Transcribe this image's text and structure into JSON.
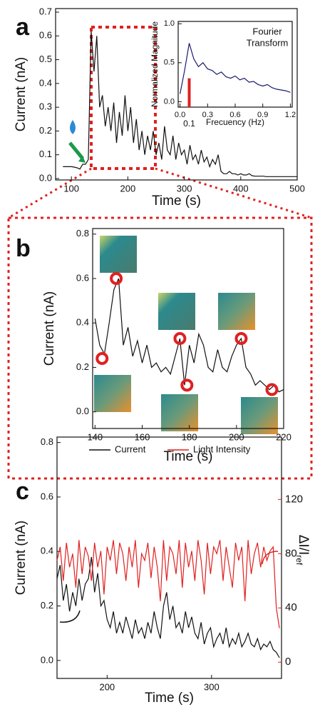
{
  "chart_data": [
    {
      "type": "line",
      "panel": "a",
      "xlabel": "Time (s)",
      "ylabel": "Current (nA)",
      "xlim": [
        72,
        500
      ],
      "xticks": [
        100,
        200,
        300,
        400,
        500
      ],
      "ylim": [
        -0.006,
        0.715
      ],
      "yticks": [
        {
          "value": 0,
          "label": "0.0"
        },
        0.1,
        0.2,
        0.3,
        0.4,
        0.5,
        0.6,
        0.7
      ],
      "color": "#111111",
      "x": [
        85,
        90,
        95,
        100,
        105,
        110,
        115,
        120,
        125,
        130,
        135,
        140,
        145,
        150,
        155,
        160,
        165,
        170,
        175,
        180,
        185,
        190,
        195,
        200,
        205,
        210,
        215,
        220,
        225,
        230,
        235,
        240,
        245,
        250,
        255,
        260,
        265,
        270,
        275,
        280,
        285,
        290,
        295,
        300,
        305,
        310,
        315,
        320,
        325,
        330,
        335,
        340,
        345,
        350,
        355,
        360,
        365,
        370,
        375,
        380,
        385,
        390,
        395,
        400,
        405,
        410,
        415,
        420,
        425,
        430,
        435,
        440,
        445,
        450,
        455,
        460,
        465,
        470,
        475,
        480,
        485,
        490,
        495,
        500
      ],
      "values": [
        0.05,
        0.05,
        0.05,
        0.05,
        0.048,
        0.045,
        0.04,
        0.06,
        0.06,
        0.08,
        0.62,
        0.45,
        0.6,
        0.3,
        0.35,
        0.22,
        0.3,
        0.2,
        0.32,
        0.15,
        0.28,
        0.18,
        0.35,
        0.2,
        0.3,
        0.15,
        0.25,
        0.12,
        0.2,
        0.1,
        0.18,
        0.12,
        0.2,
        0.1,
        0.15,
        0.08,
        0.22,
        0.12,
        0.1,
        0.18,
        0.08,
        0.15,
        0.1,
        0.12,
        0.06,
        0.14,
        0.08,
        0.1,
        0.06,
        0.12,
        0.07,
        0.09,
        0.05,
        0.08,
        0.06,
        0.1,
        0.03,
        0.02,
        0.02,
        0.03,
        0.02,
        0.02,
        0.015,
        0.02,
        0.015,
        0.015,
        0.02,
        0.012,
        0.01,
        0.01,
        0.01,
        0.01,
        0.008,
        0.008,
        0.008,
        0.008,
        0.008,
        0.008,
        0.008,
        0.008,
        0.008,
        0.008,
        0.008,
        0.008
      ]
    },
    {
      "type": "line",
      "title": [
        "Fourier",
        "Transform"
      ],
      "xlabel": "Frecuency (Hz)",
      "ylabel": "Normalized Magnitude",
      "xlim": [
        -0.02,
        1.22
      ],
      "xticks": [
        {
          "value": 0,
          "label": "0.0"
        },
        0.3,
        0.6,
        0.9,
        1.2
      ],
      "ylim": [
        -0.07,
        1.03
      ],
      "yticks": [
        {
          "value": 0,
          "label": "0.0"
        },
        0.5,
        {
          "value": 1,
          "label": "1.0"
        }
      ],
      "color": "#1a1a6e",
      "annotation": {
        "value": 0.1,
        "label": "0.1",
        "color": "#e02020"
      },
      "x": [
        0,
        0.05,
        0.1,
        0.15,
        0.2,
        0.25,
        0.3,
        0.35,
        0.4,
        0.45,
        0.5,
        0.55,
        0.6,
        0.65,
        0.7,
        0.75,
        0.8,
        0.85,
        0.9,
        0.95,
        1.0,
        1.05,
        1.1,
        1.15,
        1.2
      ],
      "values": [
        0.1,
        0.4,
        0.75,
        0.55,
        0.45,
        0.5,
        0.42,
        0.4,
        0.35,
        0.38,
        0.32,
        0.3,
        0.33,
        0.28,
        0.3,
        0.25,
        0.26,
        0.22,
        0.2,
        0.22,
        0.18,
        0.16,
        0.15,
        0.14,
        0.12
      ]
    },
    {
      "type": "line",
      "panel": "b",
      "xlabel": "Time (s)",
      "ylabel": "Current (nA)",
      "xlim": [
        139,
        220
      ],
      "xticks": [
        140,
        160,
        180,
        200,
        220
      ],
      "ylim": [
        -0.075,
        0.825
      ],
      "yticks": [
        {
          "value": 0,
          "label": "0.0"
        },
        0.2,
        0.4,
        0.6,
        0.8
      ],
      "color": "#111111",
      "x": [
        140,
        142,
        144,
        146,
        148,
        150,
        152,
        154,
        156,
        158,
        160,
        162,
        164,
        166,
        168,
        170,
        172,
        174,
        176,
        178,
        180,
        182,
        184,
        186,
        188,
        190,
        192,
        194,
        196,
        198,
        200,
        202,
        204,
        206,
        208,
        210,
        212,
        214,
        216,
        218,
        220
      ],
      "values": [
        0.42,
        0.3,
        0.26,
        0.4,
        0.55,
        0.6,
        0.3,
        0.38,
        0.25,
        0.32,
        0.22,
        0.3,
        0.2,
        0.22,
        0.18,
        0.2,
        0.17,
        0.25,
        0.33,
        0.12,
        0.3,
        0.22,
        0.35,
        0.3,
        0.2,
        0.18,
        0.28,
        0.2,
        0.18,
        0.25,
        0.3,
        0.33,
        0.2,
        0.17,
        0.12,
        0.14,
        0.12,
        0.1,
        0.12,
        0.09,
        0.1
      ],
      "markers": {
        "color": "#e02020",
        "x": [
          143,
          149,
          176,
          179,
          202,
          215
        ],
        "values": [
          0.24,
          0.6,
          0.33,
          0.12,
          0.33,
          0.1
        ]
      }
    },
    {
      "type": "line",
      "panel": "c",
      "xlabel": "Time (s)",
      "ylabel": "Current (nA)",
      "y2label": {
        "text": "ΔI/I",
        "sub": "ref"
      },
      "y2color": "#e02020",
      "xlim": [
        152,
        367
      ],
      "xticks": [
        200,
        300
      ],
      "ylim": [
        -0.066,
        0.82
      ],
      "yticks": [
        {
          "value": 0,
          "label": "0.0"
        },
        0.2,
        0.4,
        0.6,
        0.8
      ],
      "y2lim": [
        -12,
        166
      ],
      "y2ticks": [
        0,
        40,
        80,
        120
      ],
      "x": [
        152,
        155,
        158,
        161,
        164,
        167,
        170,
        173,
        176,
        179,
        182,
        185,
        188,
        191,
        194,
        197,
        200,
        203,
        206,
        209,
        212,
        215,
        218,
        221,
        224,
        227,
        230,
        233,
        236,
        239,
        242,
        245,
        248,
        251,
        254,
        257,
        260,
        263,
        266,
        269,
        272,
        275,
        278,
        281,
        284,
        287,
        290,
        293,
        296,
        299,
        302,
        305,
        308,
        311,
        314,
        317,
        320,
        323,
        326,
        329,
        332,
        335,
        338,
        341,
        344,
        347,
        350,
        353,
        356,
        359,
        362,
        365
      ],
      "series": [
        {
          "name": "Current",
          "color": "#111111",
          "values": [
            0.3,
            0.35,
            0.22,
            0.28,
            0.18,
            0.25,
            0.2,
            0.3,
            0.22,
            0.28,
            0.3,
            0.38,
            0.25,
            0.32,
            0.2,
            0.22,
            0.15,
            0.12,
            0.18,
            0.1,
            0.14,
            0.1,
            0.16,
            0.12,
            0.08,
            0.15,
            0.1,
            0.12,
            0.08,
            0.14,
            0.1,
            0.18,
            0.12,
            0.08,
            0.2,
            0.25,
            0.15,
            0.2,
            0.12,
            0.14,
            0.1,
            0.18,
            0.12,
            0.16,
            0.1,
            0.08,
            0.14,
            0.06,
            0.1,
            0.12,
            0.05,
            0.08,
            0.1,
            0.06,
            0.12,
            0.05,
            0.08,
            0.06,
            0.1,
            0.05,
            0.07,
            0.1,
            0.06,
            0.05,
            0.08,
            0.04,
            0.06,
            0.05,
            0.07,
            0.04,
            0.03,
            0.01
          ]
        },
        {
          "name": "Light Intensity",
          "color": "#e02020",
          "axis": "y2",
          "values": [
            75,
            85,
            60,
            88,
            70,
            80,
            55,
            90,
            65,
            85,
            78,
            60,
            88,
            70,
            82,
            50,
            85,
            75,
            90,
            65,
            88,
            80,
            60,
            85,
            70,
            90,
            55,
            80,
            75,
            88,
            62,
            85,
            70,
            45,
            90,
            60,
            85,
            80,
            65,
            90,
            55,
            88,
            70,
            82,
            60,
            90,
            75,
            50,
            88,
            65,
            85,
            80,
            90,
            60,
            85,
            70,
            55,
            88,
            75,
            85,
            45,
            90,
            65,
            80,
            88,
            70,
            85,
            75,
            82,
            85,
            40,
            25
          ]
        }
      ]
    }
  ]
}
